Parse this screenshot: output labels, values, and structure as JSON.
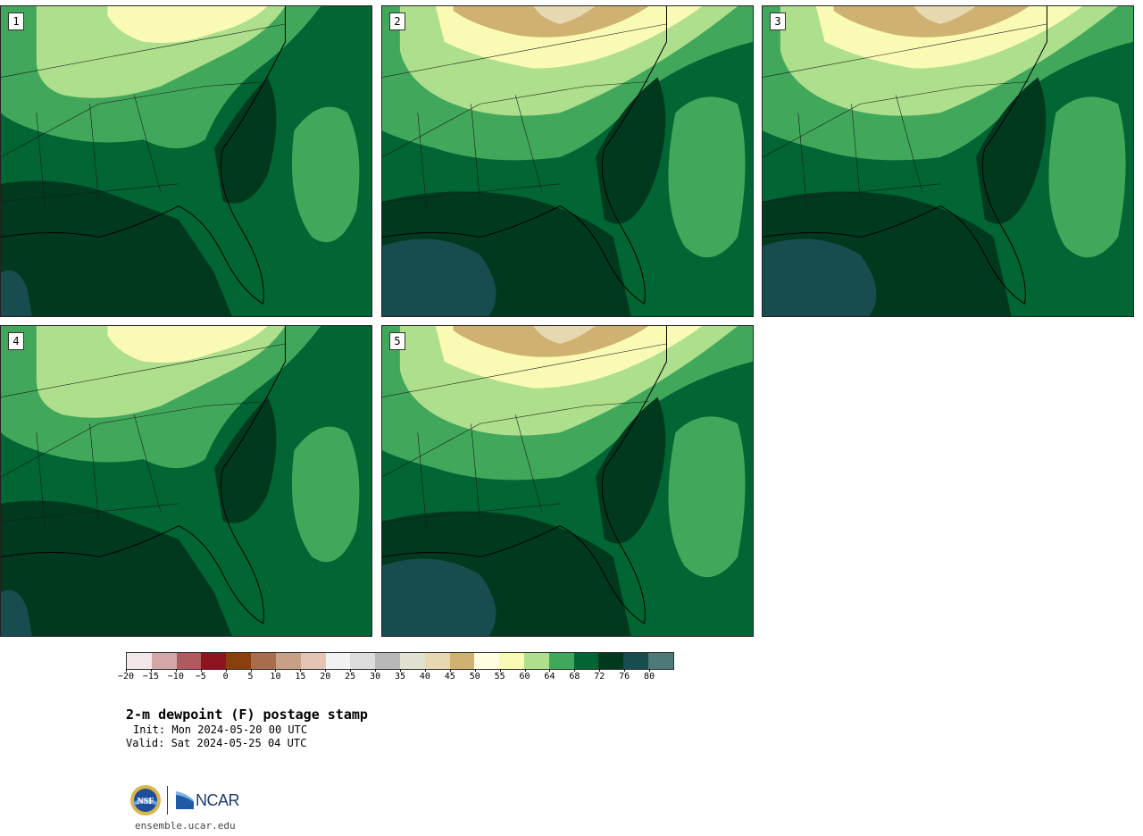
{
  "figure": {
    "title": "2-m dewpoint (F) postage stamp",
    "init": "Init: Mon 2024-05-20 00 UTC",
    "valid": "Valid: Sat 2024-05-25 04 UTC",
    "site": "ensemble.ucar.edu",
    "logos": {
      "nsf": "NSF",
      "ncar": "NCAR"
    }
  },
  "members": [
    {
      "label": "1",
      "scheme": "moist"
    },
    {
      "label": "2",
      "scheme": "dry-north"
    },
    {
      "label": "3",
      "scheme": "dry-north"
    },
    {
      "label": "4",
      "scheme": "moist"
    },
    {
      "label": "5",
      "scheme": "dry-north"
    }
  ],
  "colorbar": {
    "colors": [
      "#f3e8e8",
      "#d4a6a8",
      "#ad5b5e",
      "#8c1520",
      "#8a3f0e",
      "#a86d4c",
      "#c99f85",
      "#e6c4b3",
      "#f2f2f2",
      "#dcdcdc",
      "#b8b8b8",
      "#e1e1d2",
      "#e6d8b0",
      "#cfb172",
      "#ffffe0",
      "#f9fbb4",
      "#addf8c",
      "#41a85b",
      "#016633",
      "#01391f",
      "#184d4f",
      "#4e7979"
    ],
    "ticks": [
      "−20",
      "−15",
      "−10",
      "−5",
      "0",
      "5",
      "10",
      "15",
      "20",
      "25",
      "30",
      "35",
      "40",
      "45",
      "50",
      "55",
      "60",
      "64",
      "68",
      "72",
      "76",
      "80"
    ]
  }
}
